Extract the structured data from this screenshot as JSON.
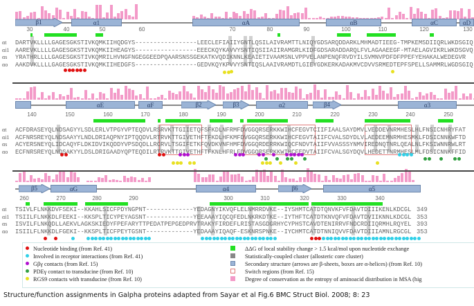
{
  "row_labels": [
    "αt",
    "αi1",
    "αs",
    "αo"
  ],
  "blocks": [
    {
      "numbers": [
        "30",
        "40",
        "50",
        "60",
        "70",
        "80",
        "90",
        "100",
        "110",
        "120",
        "130"
      ],
      "ss_labels": [
        "β1",
        "α1",
        "αA",
        "αB",
        "αC",
        "αD"
      ],
      "sequences": [
        "DARTVKLLLLGAGESGKSTIVKQMKIIHQDGYS-----------------LEECLEFIAIIYGNTLQSILAIVRAMTTLNIQYGDSARQDDARKLMHMADTIEEG-TMPKEMSDIIQRLWKDSGIQ",
        "AAREVKLLLLGAGESGKSTIVKQMKIIHEAGYS-----------------EEECKQYKAVVYSNTIQSIIAIIRAMGRLKIDFGDSARADDARQLFVLAGAAEEGF-MTAELAGVIKRLWKDSGVQ",
        "YRATHRLLLLGAGESGKSTIVKQMRILHVNGFNGEGGEEDPQAARSNSSGEKATKVQDIKNNLKEAIETIVAAMSNLVPPVELANPENQFRVDYILSVMNVPDFDFPPEFYEHAKALWEDEGVR",
        "AAKDVKLLLLGAGESGKSTIVKQMKIIHEDGFS-----------------GEDVKQYKPVVYSNTIQSLAAIVRAMDTLGIEYGDKERKADAKMVCDVVSRMEDTEPFSPELLSAMMRLWGDSGIQ"
      ]
    },
    {
      "numbers": [
        "140",
        "150",
        "160",
        "170",
        "180",
        "190",
        "200",
        "210",
        "220",
        "230",
        "240",
        "250"
      ],
      "ss_labels": [
        "αE",
        "αF",
        "β2",
        "β3",
        "α2",
        "β4",
        "α3"
      ],
      "sequences": [
        "ACFDRASEYQLNDSAGYYLSDLERLVTPGYVPTEQDVLRSRVKTTGIIETQFSFKDLNFRMFDVGGQRSERKKWIHCFEGVTCIIFIAALSAYDMVLVEDDEVNRMHESLHLFNSICNHRYFAT",
        "ACFNRSREYQLNDSAAYYLNDLDRIAQPNYIPTQQDVLRTRVKTTGIVETHFTFKDLHFKMFDVGGQRSERKKWIHCFEGVTAIIFCVALSDYDLVLAEDEEMNRMHESMKLFDSICNNKWFTD",
        "ACYERSNEYQLIDCAQYFLDKIDVIKQDDYVPSDQDLLRCRVLTSGIFETKFQVDKVNFHMFDVGGQRDERRKWIQCFNDVTAIIFVVASSSYNMVIREDNQTNRLQEALNLFKSIWNNRWLRT",
        "ECFNRSREYQLNDSAKYYLDSLDRIGAADYQPTEQDILRTRVKTTGIVETHFTFKNLHFRLFDVGGQRSERKKWIHCFEDVTAIIFCVALSGYDQVLHEDETTNRMHESLMLFDSICNNKFFID"
      ]
    },
    {
      "numbers": [
        "260",
        "270",
        "280",
        "290",
        "300",
        "310",
        "320",
        "330",
        "340"
      ],
      "ss_labels": [
        "β5",
        "αG",
        "α4",
        "β6",
        "α5"
      ],
      "sequences": [
        "TSIVLFLNKKDVFSEKI--KKAHLSICFPDYNGPNT-------------YEDAGNYIKVQFLELNMRRDVKE--IYSHMTCATDTQNVKFVFDAVTDIIIKENLKDCGL",
        "TSIILFLNKKDLFEEKI--KKSPLTICYPEYAGSNT-------------YEEAAAYIQCQFEDLNKRKDTKE--IYTHFTCATDTKNVQFVFDAVTDVIIKNNLKDCGL",
        "ISVILFLNKQDLLAEKVLAGKSKIEDYFPEFARYTTPEDATPEPGEDPRVTRAKYFIRDEFLRISTASGDGRHYCYPHSTCAVDTENIRRVFNDCRDIIQRMHLRQYEL",
        "ISIILFLNKKDLFGEKI--KKSPLTICFPEYTGSNT-------------YEDAAAYIQAQF-ESKNRSPNKE--IYCHMTCATDTNNIQVVFDAVTDIIIAMNLRGCGL"
      ],
      "end_numbers": [
        "349",
        "353",
        "393",
        "353"
      ]
    }
  ],
  "legend": {
    "left": [
      {
        "label": "Nucleotide binding (from Ref. 41)",
        "color": "#e01010"
      },
      {
        "label": "Involved in receptor interactions (from Ref. 41)",
        "color": "#30d0e8"
      },
      {
        "label": "Gβγ contacts (from Ref. 15)",
        "color": "#b010d0"
      },
      {
        "label": "PDEγ contact to transducine (from Ref. 10)",
        "color": "#30a040"
      },
      {
        "label": "RGS9 contacts with transducine (from Ref. 10)",
        "color": "#e8e020"
      }
    ],
    "right": [
      {
        "label": "ΔΔG of local stability change > 1.5 kcal/mol upon nucleotide exchange",
        "color": "#22e022"
      },
      {
        "label": "Statistically-coupled cluster (allosteric core cluster)",
        "color": "#888888"
      },
      {
        "label": "Secondary structure (arrows are β-sheets, boxes are α-helices) (from Ref. 10)",
        "color": "#9bb4d6"
      },
      {
        "label": "Switch regions (from Ref. 15)",
        "color": "#e07a7a"
      },
      {
        "label": "Degree of conservation as the entropy of  aminoacid distribution in MSA (hig",
        "color": "#f39ac8"
      }
    ]
  },
  "caption": "Structure/function assignments in Galpha proteins adapted from Sayar et al Fig.6 BMC Struct Biol. 2008; 8: 23"
}
